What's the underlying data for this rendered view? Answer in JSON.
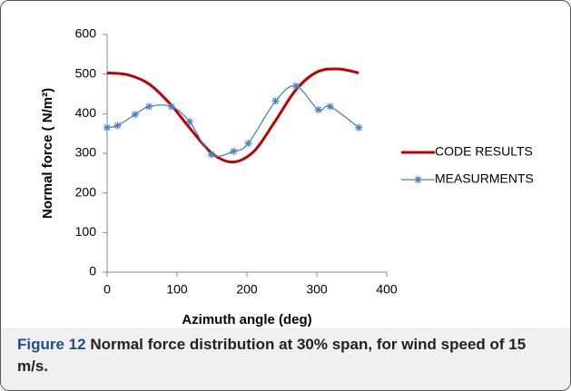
{
  "chart_data": {
    "type": "line",
    "x_label": "Azimuth angle (deg)",
    "y_label": "Normal force ( N/m²)",
    "xlim": [
      0,
      400
    ],
    "xticks": [
      0,
      100,
      200,
      300,
      400
    ],
    "ylim": [
      0,
      600
    ],
    "yticks": [
      0,
      100,
      200,
      300,
      400,
      500,
      600
    ],
    "grid": false,
    "legend": "right",
    "series": [
      {
        "name": "CODE RESULTS",
        "color": "#c00000",
        "marker": "none",
        "x": [
          0,
          30,
          60,
          90,
          120,
          150,
          180,
          210,
          240,
          270,
          300,
          330,
          360
        ],
        "values": [
          503,
          498,
          475,
          425,
          360,
          300,
          278,
          305,
          380,
          460,
          505,
          513,
          503
        ]
      },
      {
        "name": "MEASURMENTS",
        "color": "#4f81bd",
        "marker": "asterisk",
        "x": [
          0,
          15,
          40,
          60,
          92,
          118,
          149,
          181,
          202,
          241,
          270,
          302,
          319,
          360
        ],
        "values": [
          365,
          370,
          398,
          418,
          418,
          380,
          297,
          305,
          325,
          432,
          470,
          410,
          418,
          365
        ]
      }
    ]
  },
  "caption": {
    "label": "Figure 12",
    "text": "Normal force distribution at 30% span, for wind speed of 15 m/s."
  }
}
